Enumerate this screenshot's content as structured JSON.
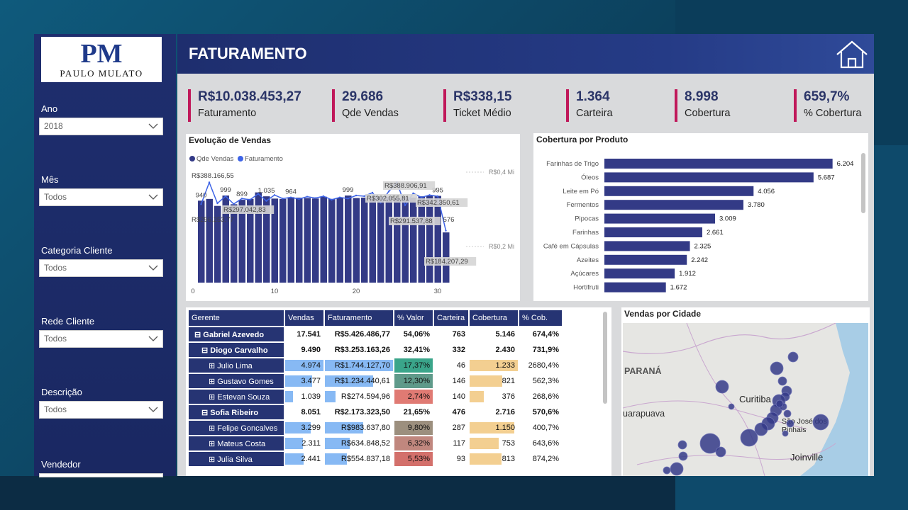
{
  "logo": {
    "initials": "PM",
    "name": "PAULO MULATO"
  },
  "filters": [
    {
      "label": "Ano",
      "value": "2018"
    },
    {
      "label": "Mês",
      "value": "Todos"
    },
    {
      "label": "Categoria Cliente",
      "value": "Todos"
    },
    {
      "label": "Rede Cliente",
      "value": "Todos"
    },
    {
      "label": "Descrição",
      "value": "Todos"
    },
    {
      "label": "Vendedor",
      "value": ""
    }
  ],
  "header": {
    "title": "FATURAMENTO"
  },
  "kpis": [
    {
      "value": "R$10.038.453,27",
      "label": "Faturamento"
    },
    {
      "value": "29.686",
      "label": "Qde Vendas"
    },
    {
      "value": "R$338,15",
      "label": "Ticket Médio"
    },
    {
      "value": "1.364",
      "label": "Carteira"
    },
    {
      "value": "8.998",
      "label": "Cobertura"
    },
    {
      "value": "659,7%",
      "label": "% Cobertura"
    }
  ],
  "colors": {
    "accent": "#c0185a",
    "navy": "#263473",
    "bar": "#333a86",
    "line": "#3d63e6"
  },
  "chart_data": [
    {
      "type": "bar",
      "title": "Evolução de Vendas",
      "legend": [
        "Qde Vendas",
        "Faturamento"
      ],
      "x": [
        1,
        2,
        3,
        4,
        5,
        6,
        7,
        8,
        9,
        10,
        11,
        12,
        13,
        14,
        15,
        16,
        17,
        18,
        19,
        20,
        21,
        22,
        23,
        24,
        25,
        26,
        27,
        28,
        29,
        30,
        31
      ],
      "series": [
        {
          "name": "Qde Vendas",
          "values": [
            940,
            960,
            880,
            999,
            899,
            950,
            960,
            1035,
            990,
            964,
            960,
            980,
            975,
            970,
            965,
            985,
            960,
            975,
            999,
            970,
            975,
            980,
            985,
            985,
            975,
            985,
            975,
            990,
            995,
            995,
            576
          ]
        },
        {
          "name": "Faturamento",
          "values": [
            296253.77,
            388166.55,
            300000,
            330000,
            297042.83,
            320000,
            315000,
            340000,
            310000,
            335000,
            320000,
            325000,
            318000,
            328000,
            322000,
            330000,
            315000,
            325000,
            320000,
            333000,
            330000,
            345000,
            302055.81,
            350000,
            388906.91,
            291537.88,
            342350.61,
            325000,
            335000,
            330000,
            184207.29
          ]
        }
      ],
      "xticks": [
        "0",
        "10",
        "20",
        "30"
      ],
      "yright_ticks": [
        "R$0,4 Mi",
        "R$0,2 Mi"
      ],
      "bar_labels": [
        {
          "x": 1,
          "text": "940"
        },
        {
          "x": 4,
          "text": "999"
        },
        {
          "x": 6,
          "text": "899"
        },
        {
          "x": 9,
          "text": "1.035"
        },
        {
          "x": 12,
          "text": "964"
        },
        {
          "x": 19,
          "text": "999"
        },
        {
          "x": 30,
          "text": "995"
        },
        {
          "x": 31,
          "text": "576"
        }
      ],
      "line_labels": [
        {
          "x": 1,
          "text": "R$388.166,55"
        },
        {
          "x": 1,
          "text": "R$296.253,77"
        },
        {
          "x": 5,
          "text": "R$297.042,83"
        },
        {
          "x": 23,
          "text": "R$302.055,81"
        },
        {
          "x": 25,
          "text": "R$388.906,91"
        },
        {
          "x": 26,
          "text": "R$291.537,88"
        },
        {
          "x": 28,
          "text": "R$342.350,61"
        },
        {
          "x": 31,
          "text": "R$184.207,29"
        }
      ]
    },
    {
      "type": "bar",
      "title": "Cobertura por Produto",
      "categories": [
        "Farinhas de Trigo",
        "Óleos",
        "Leite em Pó",
        "Fermentos",
        "Pipocas",
        "Farinhas",
        "Café em Cápsulas",
        "Azeites",
        "Açúcares",
        "Hortifruti"
      ],
      "values": [
        6204,
        5687,
        4056,
        3780,
        3009,
        2661,
        2325,
        2242,
        1912,
        1672
      ],
      "value_labels": [
        "6.204",
        "5.687",
        "4.056",
        "3.780",
        "3.009",
        "2.661",
        "2.325",
        "2.242",
        "1.912",
        "1.672"
      ]
    }
  ],
  "table": {
    "headers": [
      "Gerente",
      "Vendas",
      "Faturamento",
      "% Valor",
      "Carteira",
      "Cobertura",
      "% Cob."
    ],
    "rows": [
      {
        "level": 1,
        "name": "Gabriel Azevedo",
        "vendas": "17.541",
        "fat": "R$5.426.486,77",
        "pval": "54,06%",
        "carteira": "763",
        "cob": "5.146",
        "pcob": "674,4%"
      },
      {
        "level": 2,
        "name": "Diogo Carvalho",
        "vendas": "9.490",
        "fat": "R$3.253.163,26",
        "pval": "32,41%",
        "carteira": "332",
        "cob": "2.430",
        "pcob": "731,9%"
      },
      {
        "level": 3,
        "name": "Julio Lima",
        "vendas": "4.974",
        "fat": "R$1.744.127,70",
        "pval": "17,37%",
        "carteira": "46",
        "cob": "1.233",
        "pcob": "2680,4%",
        "vbar": 1.0,
        "fbar": 1.0,
        "cbar": 1.0,
        "pcolor": "#3aa58a"
      },
      {
        "level": 3,
        "name": "Gustavo Gomes",
        "vendas": "3.477",
        "fat": "R$1.234.440,61",
        "pval": "12,30%",
        "carteira": "146",
        "cob": "821",
        "pcob": "562,3%",
        "vbar": 0.7,
        "fbar": 0.71,
        "cbar": 0.67,
        "pcolor": "#5f9a8a"
      },
      {
        "level": 3,
        "name": "Estevan Souza",
        "vendas": "1.039",
        "fat": "R$274.594,96",
        "pval": "2,74%",
        "carteira": "140",
        "cob": "376",
        "pcob": "268,6%",
        "vbar": 0.21,
        "fbar": 0.16,
        "cbar": 0.3,
        "pcolor": "#e07a73"
      },
      {
        "level": 2,
        "name": "Sofia Ribeiro",
        "vendas": "8.051",
        "fat": "R$2.173.323,50",
        "pval": "21,65%",
        "carteira": "476",
        "cob": "2.716",
        "pcob": "570,6%"
      },
      {
        "level": 3,
        "name": "Felipe Goncalves",
        "vendas": "3.299",
        "fat": "R$983.637,80",
        "pval": "9,80%",
        "carteira": "287",
        "cob": "1.150",
        "pcob": "400,7%",
        "vbar": 0.66,
        "fbar": 0.56,
        "cbar": 0.93,
        "pcolor": "#9c8f7e"
      },
      {
        "level": 3,
        "name": "Mateus Costa",
        "vendas": "2.311",
        "fat": "R$634.848,52",
        "pval": "6,32%",
        "carteira": "117",
        "cob": "753",
        "pcob": "643,6%",
        "vbar": 0.46,
        "fbar": 0.36,
        "cbar": 0.61,
        "pcolor": "#c0877e"
      },
      {
        "level": 3,
        "name": "Julia Silva",
        "vendas": "2.441",
        "fat": "R$554.837,18",
        "pval": "5,53%",
        "carteira": "93",
        "cob": "813",
        "pcob": "874,2%",
        "vbar": 0.49,
        "fbar": 0.32,
        "cbar": 0.66,
        "pcolor": "#d3706b"
      }
    ]
  },
  "map": {
    "title": "Vendas por Cidade",
    "labels": [
      "PARANÁ",
      "uarapuava",
      "Curitiba",
      "São José dos Pinhais",
      "Joinville"
    ]
  }
}
